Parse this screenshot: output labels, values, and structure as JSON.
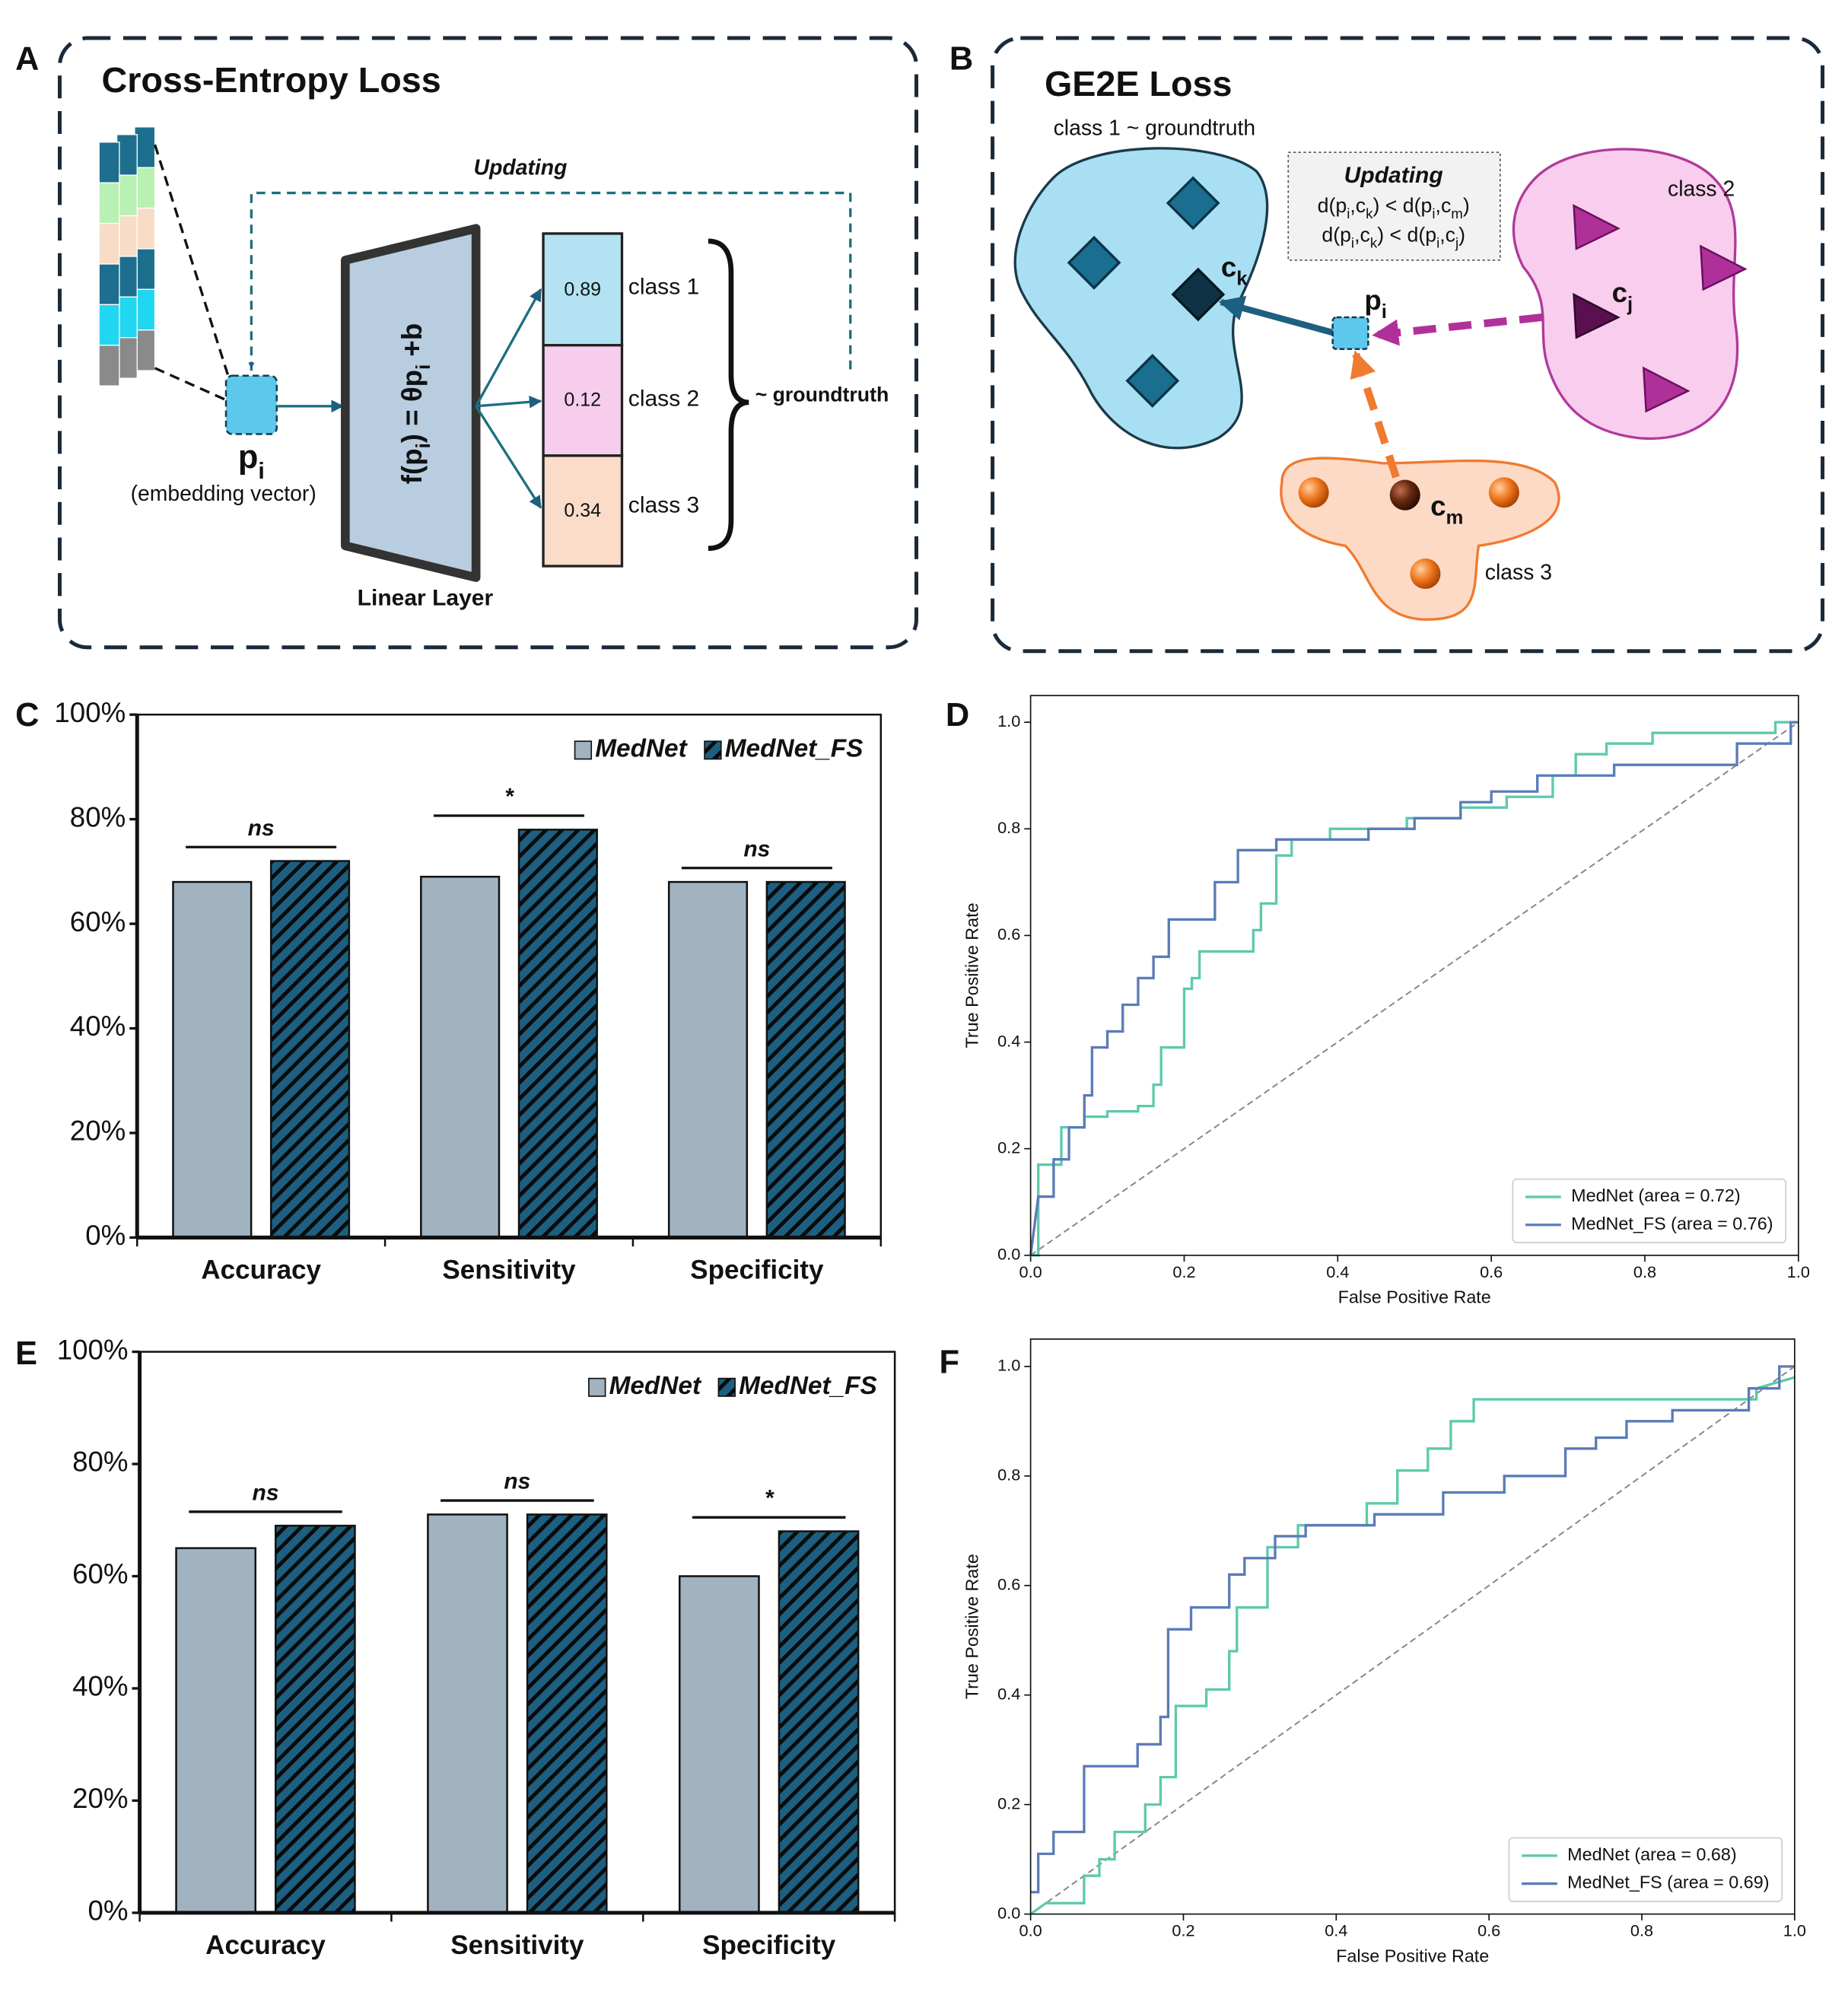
{
  "panel_labels": [
    "A",
    "B",
    "C",
    "D",
    "E",
    "F"
  ],
  "diagram_a": {
    "title": "Cross-Entropy Loss",
    "updating": "Updating",
    "embedding": {
      "symbol": "p",
      "sub": "i",
      "caption": "(embedding vector)"
    },
    "formula": [
      "f(p",
      "i",
      ") = θp",
      "i",
      " +b"
    ],
    "layer": "Linear Layer",
    "outputs": [
      {
        "value": 0.89,
        "label": "class 1"
      },
      {
        "value": 0.12,
        "label": "class 2"
      },
      {
        "value": 0.34,
        "label": "class 3"
      }
    ],
    "target": "~ groundtruth"
  },
  "diagram_b": {
    "title": "GE2E Loss",
    "classes": [
      "class 1 ~ groundtruth",
      "class 2",
      "class 3"
    ],
    "updating": {
      "title": "Updating",
      "rules": [
        [
          "d(p",
          "i",
          ",c",
          "k",
          ") < d(p",
          "i",
          ",c",
          "m",
          ")"
        ],
        [
          "d(p",
          "i",
          ",c",
          "k",
          ") < d(p",
          "i",
          ",c",
          "j",
          ")"
        ]
      ]
    },
    "points": [
      {
        "symbol": "c",
        "sub": "k"
      },
      {
        "symbol": "p",
        "sub": "i"
      },
      {
        "symbol": "c",
        "sub": "j"
      },
      {
        "symbol": "c",
        "sub": "m"
      }
    ]
  },
  "chart_data": [
    {
      "type": "bar",
      "categories": [
        "Accuracy",
        "Sensitivity",
        "Specificity"
      ],
      "series": [
        {
          "name": "MedNet",
          "color": "#a1b2c0",
          "values": [
            68,
            69,
            68
          ]
        },
        {
          "name": "MedNet_FS",
          "color": "#1d5f80",
          "hatch": true,
          "values": [
            72,
            78,
            68
          ]
        }
      ],
      "annotations": [
        "ns",
        "*",
        "ns"
      ],
      "ylim": [
        0,
        100
      ],
      "yticks": [
        {
          "value": 0,
          "label": "0%"
        },
        {
          "value": 20,
          "label": "20%"
        },
        {
          "value": 40,
          "label": "40%"
        },
        {
          "value": 60,
          "label": "60%"
        },
        {
          "value": 80,
          "label": "80%"
        },
        {
          "value": 100,
          "label": "100%"
        }
      ],
      "legend": "upper right"
    },
    {
      "type": "line",
      "xlabel": "False Positive Rate",
      "ylabel": "True Positive Rate",
      "xlim": [
        0,
        1
      ],
      "ylim": [
        0,
        1.05
      ],
      "xticks": [
        {
          "value": 0,
          "label": "0.0"
        },
        0.2,
        0.4,
        0.6,
        0.8,
        {
          "value": 1,
          "label": "1.0"
        }
      ],
      "yticks": [
        {
          "value": 0,
          "label": "0.0"
        },
        0.2,
        0.4,
        0.6,
        0.8,
        {
          "value": 1,
          "label": "1.0"
        }
      ],
      "legend": "lower right",
      "series": [
        {
          "name": "MedNet (area = 0.72)",
          "color": "#5ec9ad",
          "x": [
            0,
            0.01,
            0.01,
            0.04,
            0.04,
            0.07,
            0.07,
            0.1,
            0.1,
            0.14,
            0.14,
            0.16,
            0.16,
            0.17,
            0.17,
            0.2,
            0.2,
            0.21,
            0.21,
            0.22,
            0.22,
            0.29,
            0.29,
            0.3,
            0.3,
            0.32,
            0.32,
            0.34,
            0.34,
            0.39,
            0.39,
            0.49,
            0.49,
            0.56,
            0.56,
            0.62,
            0.62,
            0.68,
            0.68,
            0.71,
            0.71,
            0.75,
            0.75,
            0.81,
            0.81,
            0.97,
            0.97,
            1
          ],
          "y": [
            0,
            0,
            0.17,
            0.17,
            0.24,
            0.24,
            0.26,
            0.26,
            0.27,
            0.27,
            0.28,
            0.28,
            0.32,
            0.32,
            0.39,
            0.39,
            0.5,
            0.5,
            0.52,
            0.52,
            0.57,
            0.57,
            0.61,
            0.61,
            0.66,
            0.66,
            0.75,
            0.75,
            0.78,
            0.78,
            0.8,
            0.8,
            0.82,
            0.82,
            0.84,
            0.84,
            0.86,
            0.86,
            0.9,
            0.9,
            0.94,
            0.94,
            0.96,
            0.96,
            0.98,
            0.98,
            1,
            1
          ]
        },
        {
          "name": "MedNet_FS (area = 0.76)",
          "color": "#5b7bb8",
          "x": [
            0,
            0.01,
            0.03,
            0.03,
            0.05,
            0.05,
            0.07,
            0.07,
            0.08,
            0.08,
            0.1,
            0.1,
            0.12,
            0.12,
            0.14,
            0.14,
            0.16,
            0.16,
            0.18,
            0.18,
            0.24,
            0.24,
            0.27,
            0.27,
            0.32,
            0.32,
            0.44,
            0.44,
            0.5,
            0.5,
            0.56,
            0.56,
            0.6,
            0.6,
            0.66,
            0.66,
            0.76,
            0.76,
            0.92,
            0.92,
            0.99,
            0.99,
            1
          ],
          "y": [
            0,
            0.11,
            0.11,
            0.18,
            0.18,
            0.24,
            0.24,
            0.3,
            0.3,
            0.39,
            0.39,
            0.42,
            0.42,
            0.47,
            0.47,
            0.52,
            0.52,
            0.56,
            0.56,
            0.63,
            0.63,
            0.7,
            0.7,
            0.76,
            0.76,
            0.78,
            0.78,
            0.8,
            0.8,
            0.82,
            0.82,
            0.85,
            0.85,
            0.87,
            0.87,
            0.9,
            0.9,
            0.92,
            0.92,
            0.96,
            0.96,
            1,
            1
          ]
        }
      ]
    },
    {
      "type": "bar",
      "categories": [
        "Accuracy",
        "Sensitivity",
        "Specificity"
      ],
      "series": [
        {
          "name": "MedNet",
          "color": "#a1b2c0",
          "values": [
            65,
            71,
            60
          ]
        },
        {
          "name": "MedNet_FS",
          "color": "#1d5f80",
          "hatch": true,
          "values": [
            69,
            71,
            68
          ]
        }
      ],
      "annotations": [
        "ns",
        "ns",
        "*"
      ],
      "ylim": [
        0,
        100
      ],
      "yticks": [
        {
          "value": 0,
          "label": "0%"
        },
        {
          "value": 20,
          "label": "20%"
        },
        {
          "value": 40,
          "label": "40%"
        },
        {
          "value": 60,
          "label": "60%"
        },
        {
          "value": 80,
          "label": "80%"
        },
        {
          "value": 100,
          "label": "100%"
        }
      ],
      "legend": "upper right"
    },
    {
      "type": "line",
      "xlabel": "False Positive Rate",
      "ylabel": "True Positive Rate",
      "xlim": [
        0,
        1
      ],
      "ylim": [
        0,
        1.05
      ],
      "xticks": [
        {
          "value": 0,
          "label": "0.0"
        },
        0.2,
        0.4,
        0.6,
        0.8,
        {
          "value": 1,
          "label": "1.0"
        }
      ],
      "yticks": [
        {
          "value": 0,
          "label": "0.0"
        },
        0.2,
        0.4,
        0.6,
        0.8,
        {
          "value": 1,
          "label": "1.0"
        }
      ],
      "legend": "lower right",
      "series": [
        {
          "name": "MedNet (area = 0.68)",
          "color": "#5ec9ad",
          "x": [
            0,
            0.02,
            0.07,
            0.07,
            0.09,
            0.09,
            0.11,
            0.11,
            0.15,
            0.15,
            0.17,
            0.17,
            0.19,
            0.19,
            0.23,
            0.23,
            0.26,
            0.26,
            0.27,
            0.27,
            0.31,
            0.31,
            0.35,
            0.35,
            0.44,
            0.44,
            0.48,
            0.48,
            0.52,
            0.52,
            0.55,
            0.55,
            0.58,
            0.58,
            0.95,
            0.95,
            1
          ],
          "y": [
            0,
            0.02,
            0.02,
            0.07,
            0.07,
            0.1,
            0.1,
            0.15,
            0.15,
            0.2,
            0.2,
            0.25,
            0.25,
            0.38,
            0.38,
            0.41,
            0.41,
            0.48,
            0.48,
            0.56,
            0.56,
            0.67,
            0.67,
            0.71,
            0.71,
            0.75,
            0.75,
            0.81,
            0.81,
            0.85,
            0.85,
            0.9,
            0.9,
            0.94,
            0.94,
            0.96,
            0.98
          ]
        },
        {
          "name": "MedNet_FS (area = 0.69)",
          "color": "#5b7bb8",
          "x": [
            0,
            0.01,
            0.01,
            0.03,
            0.03,
            0.07,
            0.07,
            0.14,
            0.14,
            0.17,
            0.17,
            0.18,
            0.18,
            0.21,
            0.21,
            0.26,
            0.26,
            0.28,
            0.28,
            0.32,
            0.32,
            0.36,
            0.36,
            0.45,
            0.45,
            0.54,
            0.54,
            0.62,
            0.62,
            0.7,
            0.7,
            0.74,
            0.74,
            0.78,
            0.78,
            0.84,
            0.84,
            0.94,
            0.94,
            0.98,
            0.98,
            1
          ],
          "y": [
            0.04,
            0.04,
            0.11,
            0.11,
            0.15,
            0.15,
            0.27,
            0.27,
            0.31,
            0.31,
            0.36,
            0.36,
            0.52,
            0.52,
            0.56,
            0.56,
            0.62,
            0.62,
            0.65,
            0.65,
            0.69,
            0.69,
            0.71,
            0.71,
            0.73,
            0.73,
            0.77,
            0.77,
            0.8,
            0.8,
            0.85,
            0.85,
            0.87,
            0.87,
            0.9,
            0.9,
            0.92,
            0.92,
            0.96,
            0.96,
            1,
            1
          ]
        }
      ]
    }
  ]
}
